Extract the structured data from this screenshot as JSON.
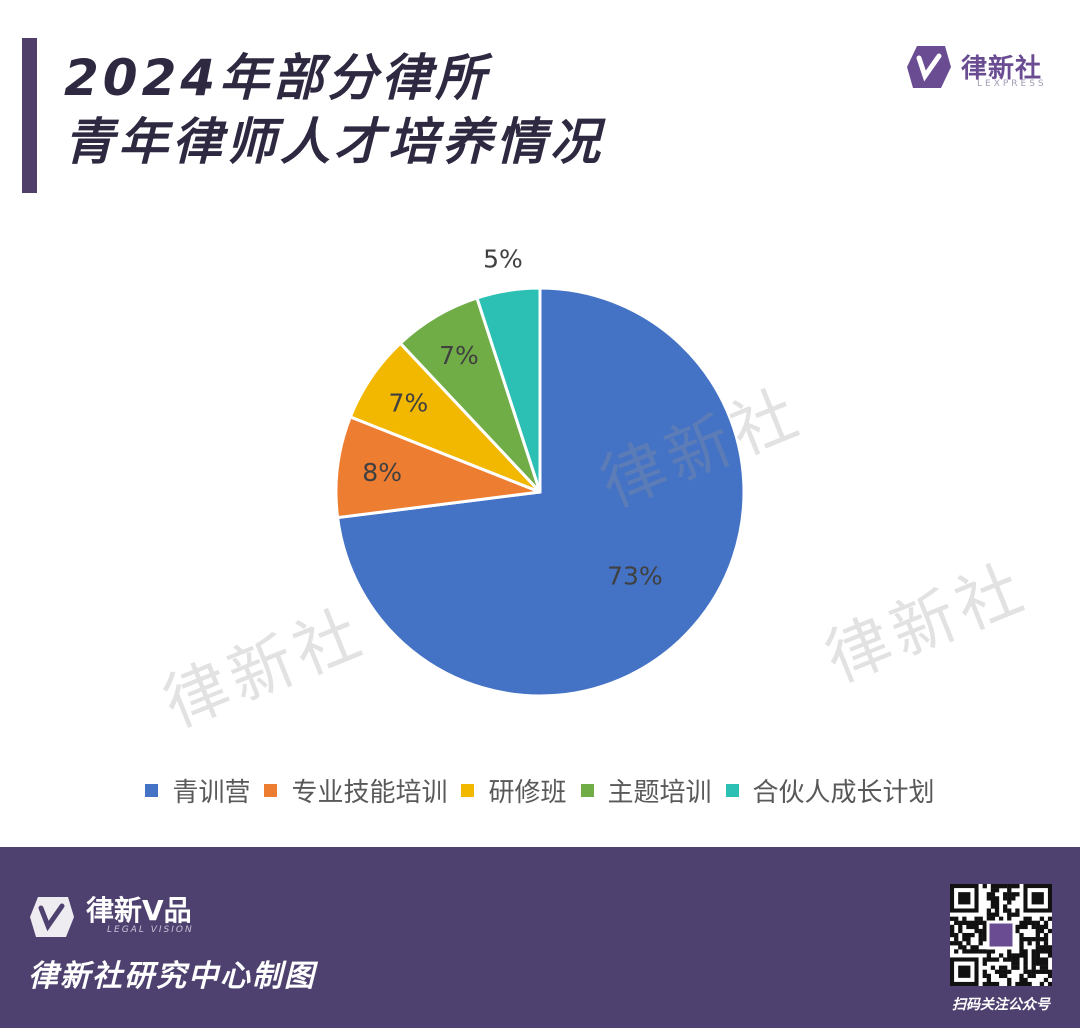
{
  "header": {
    "title_line1": "2024年部分律所",
    "title_line2": "青年律师人才培养情况",
    "brand_name": "律新社",
    "brand_sub": "LEXPRESS"
  },
  "watermark": "律新社",
  "chart_data": {
    "type": "pie",
    "title": "2024年部分律所青年律师人才培养情况",
    "categories": [
      "青训营",
      "专业技能培训",
      "研修班",
      "主题培训",
      "合伙人成长计划"
    ],
    "values": [
      73,
      8,
      7,
      7,
      5
    ],
    "labels": [
      "73%",
      "8%",
      "7%",
      "7%",
      "5%"
    ],
    "colors": [
      "#4472c4",
      "#ed7d31",
      "#f2b800",
      "#70ad47",
      "#2cc0b4"
    ],
    "legend_position": "bottom"
  },
  "footer": {
    "brand_name": "律新V品",
    "brand_sub": "LEGAL VISION",
    "credit": "律新社研究中心制图",
    "qr_caption": "扫码关注公众号"
  }
}
